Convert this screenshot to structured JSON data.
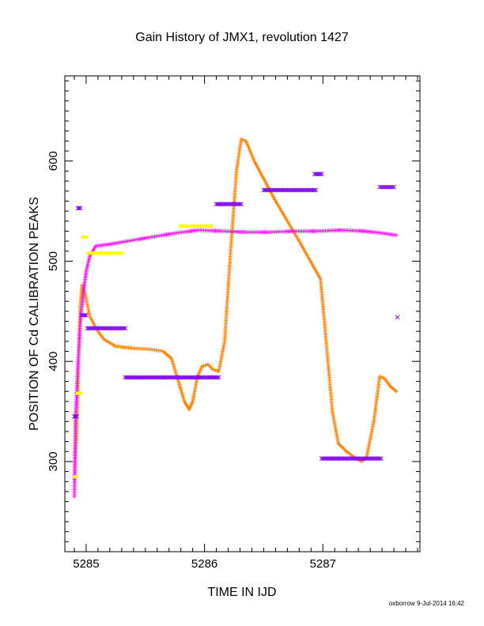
{
  "chart_data": {
    "type": "scatter",
    "title": "Gain History of JMX1, revolution 1427",
    "xlabel": "TIME IN IJD",
    "ylabel": "POSITION OF Cd CALIBRATION PEAKS",
    "xlim": [
      5284.82,
      5287.82
    ],
    "ylim": [
      210,
      685
    ],
    "x_ticks": [
      5285,
      5286,
      5287
    ],
    "y_ticks": [
      300,
      400,
      500,
      600
    ],
    "grid": false,
    "footer": "oxborrow  9-Jul-2014 16:42",
    "series": [
      {
        "color": "#ff8000",
        "marker": "plus",
        "keypoints": [
          [
            5284.9,
            282
          ],
          [
            5284.92,
            330
          ],
          [
            5284.935,
            400
          ],
          [
            5284.95,
            455
          ],
          [
            5284.965,
            476
          ],
          [
            5284.99,
            468
          ],
          [
            5285.03,
            445
          ],
          [
            5285.1,
            430
          ],
          [
            5285.15,
            422
          ],
          [
            5285.25,
            415
          ],
          [
            5285.4,
            413
          ],
          [
            5285.55,
            412
          ],
          [
            5285.65,
            410
          ],
          [
            5285.72,
            403
          ],
          [
            5285.78,
            380
          ],
          [
            5285.83,
            360
          ],
          [
            5285.87,
            352
          ],
          [
            5285.9,
            360
          ],
          [
            5285.94,
            385
          ],
          [
            5285.98,
            395
          ],
          [
            5286.03,
            397
          ],
          [
            5286.07,
            392
          ],
          [
            5286.12,
            390
          ],
          [
            5286.17,
            420
          ],
          [
            5286.22,
            510
          ],
          [
            5286.27,
            590
          ],
          [
            5286.31,
            622
          ],
          [
            5286.35,
            620
          ],
          [
            5286.42,
            600
          ],
          [
            5286.6,
            560
          ],
          [
            5286.8,
            520
          ],
          [
            5286.98,
            482
          ],
          [
            5287.02,
            430
          ],
          [
            5287.08,
            350
          ],
          [
            5287.13,
            318
          ],
          [
            5287.2,
            310
          ],
          [
            5287.28,
            303
          ],
          [
            5287.33,
            300
          ],
          [
            5287.37,
            305
          ],
          [
            5287.43,
            340
          ],
          [
            5287.48,
            385
          ],
          [
            5287.52,
            383
          ],
          [
            5287.57,
            375
          ],
          [
            5287.62,
            370
          ]
        ]
      },
      {
        "color": "#ff00ff",
        "marker": "plus",
        "keypoints": [
          [
            5284.9,
            265
          ],
          [
            5284.91,
            345
          ],
          [
            5284.93,
            395
          ],
          [
            5284.95,
            438
          ],
          [
            5284.98,
            472
          ],
          [
            5285.0,
            490
          ],
          [
            5285.03,
            505
          ],
          [
            5285.08,
            515
          ],
          [
            5285.2,
            517
          ],
          [
            5285.35,
            520
          ],
          [
            5285.55,
            524
          ],
          [
            5285.75,
            528
          ],
          [
            5285.95,
            531
          ],
          [
            5286.15,
            530
          ],
          [
            5286.35,
            529
          ],
          [
            5286.55,
            529
          ],
          [
            5286.75,
            530
          ],
          [
            5286.95,
            530
          ],
          [
            5287.15,
            531
          ],
          [
            5287.35,
            530
          ],
          [
            5287.5,
            528
          ],
          [
            5287.62,
            526
          ]
        ]
      },
      {
        "color": "#ffff00",
        "marker": "square",
        "segments": [
          [
            5284.905,
            5284.92,
            285
          ],
          [
            5284.93,
            5284.95,
            368
          ],
          [
            5284.975,
            5285.0,
            524
          ],
          [
            5285.02,
            5285.3,
            508
          ],
          [
            5285.8,
            5285.9,
            535
          ],
          [
            5285.92,
            5286.05,
            535
          ]
        ]
      },
      {
        "color": "#8000ff",
        "marker": "x",
        "segments": [
          [
            5284.9,
            5284.92,
            345
          ],
          [
            5284.93,
            5284.95,
            553
          ],
          [
            5284.96,
            5285.0,
            446
          ],
          [
            5285.01,
            5285.33,
            433
          ],
          [
            5285.33,
            5286.12,
            384
          ],
          [
            5286.1,
            5286.31,
            557
          ],
          [
            5286.5,
            5286.94,
            571
          ],
          [
            5286.93,
            5286.99,
            587
          ],
          [
            5286.99,
            5287.49,
            303
          ],
          [
            5287.48,
            5287.6,
            574
          ]
        ],
        "points": [
          [
            5287.63,
            444
          ]
        ]
      }
    ]
  }
}
